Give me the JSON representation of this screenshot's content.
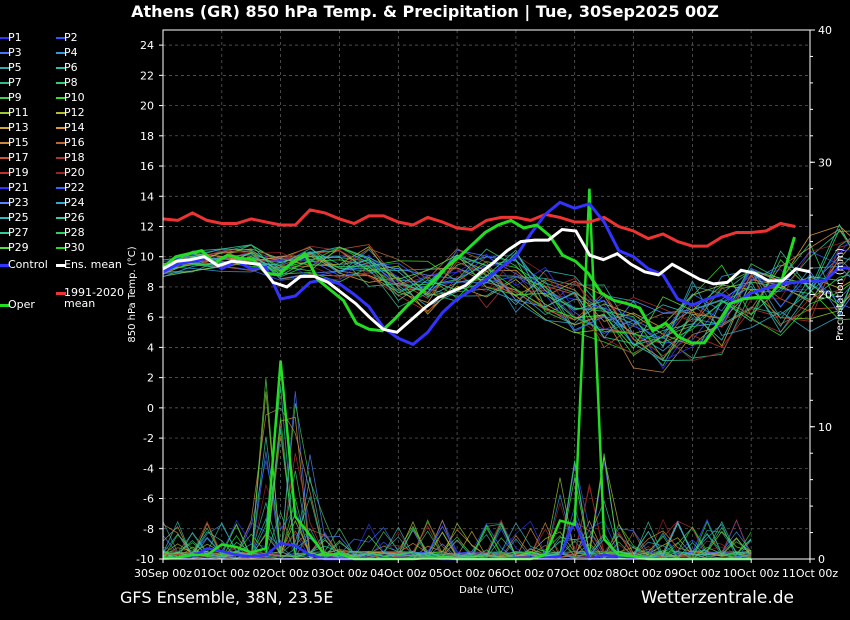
{
  "title": "Athens  (GR)  850 hPa Temp. & Precipitation | Tue, 30Sep2025 00Z",
  "footer_left": "GFS Ensemble, 38N, 23.5E",
  "footer_right": "Wetterzentrale.de",
  "legend": {
    "members": [
      {
        "name": "P1",
        "color": "#3333ff"
      },
      {
        "name": "P2",
        "color": "#3355ff"
      },
      {
        "name": "P3",
        "color": "#4477ff"
      },
      {
        "name": "P4",
        "color": "#3399dd"
      },
      {
        "name": "P5",
        "color": "#33aaaa"
      },
      {
        "name": "P6",
        "color": "#33bbaa"
      },
      {
        "name": "P7",
        "color": "#33bb88"
      },
      {
        "name": "P8",
        "color": "#33cc77"
      },
      {
        "name": "P9",
        "color": "#44cc55"
      },
      {
        "name": "P10",
        "color": "#33dd33"
      },
      {
        "name": "P11",
        "color": "#99cc33"
      },
      {
        "name": "P12",
        "color": "#bbbb33"
      },
      {
        "name": "P13",
        "color": "#ccaa33"
      },
      {
        "name": "P14",
        "color": "#dd9933"
      },
      {
        "name": "P15",
        "color": "#cc8844"
      },
      {
        "name": "P16",
        "color": "#bb6633"
      },
      {
        "name": "P17",
        "color": "#cc5533"
      },
      {
        "name": "P18",
        "color": "#aa3333"
      },
      {
        "name": "P19",
        "color": "#bb3333"
      },
      {
        "name": "P20",
        "color": "#992222"
      },
      {
        "name": "P21",
        "color": "#3333ff"
      },
      {
        "name": "P22",
        "color": "#3366ff"
      },
      {
        "name": "P23",
        "color": "#5588ff"
      },
      {
        "name": "P24",
        "color": "#33aacc"
      },
      {
        "name": "P25",
        "color": "#33bbbb"
      },
      {
        "name": "P26",
        "color": "#33ccaa"
      },
      {
        "name": "P27",
        "color": "#33cc99"
      },
      {
        "name": "P28",
        "color": "#33cc66"
      },
      {
        "name": "P29",
        "color": "#55dd44"
      },
      {
        "name": "P30",
        "color": "#22dd22"
      }
    ],
    "control": "Control",
    "ens_mean": "Ens. mean",
    "oper": "Oper",
    "clim_mean_line1": "1991-2020",
    "clim_mean_line2": "mean"
  },
  "colors": {
    "control": "#3333ff",
    "ens_mean": "#ffffff",
    "oper": "#22dd22",
    "clim_mean": "#ee3333",
    "grid": "#666666"
  },
  "chart_data": {
    "type": "line",
    "x": [
      "30Sep 00z",
      "01Oct 00z",
      "02Oct 00z",
      "03Oct 00z",
      "04Oct 00z",
      "05Oct 00z",
      "06Oct 00z",
      "07Oct 00z",
      "08Oct 00z",
      "09Oct 00z",
      "10Oct 00z",
      "11Oct 00z"
    ],
    "xlabel": "Date (UTC)",
    "ylabel": "850 hPa Temp. (°C)",
    "y2label": "Precipitation (mm)",
    "ylim": [
      -10,
      25
    ],
    "yticks": [
      -10,
      -8,
      -6,
      -4,
      -2,
      0,
      2,
      4,
      6,
      8,
      10,
      12,
      14,
      16,
      18,
      20,
      22,
      24
    ],
    "y2lim": [
      0,
      40
    ],
    "y2ticks": [
      0,
      10,
      20,
      30,
      40
    ],
    "grid": true,
    "legend_position": "left",
    "x_step_hours": 12,
    "temperature": {
      "clim_mean": [
        12.5,
        12.4,
        12.9,
        12.4,
        12.2,
        12.2,
        12.5,
        12.3,
        12.1,
        12.1,
        13.1,
        12.9,
        12.5,
        12.2,
        12.7,
        12.7,
        12.3,
        12.1,
        12.6,
        12.3,
        11.9,
        11.8,
        12.4,
        12.6,
        12.6,
        12.4,
        12.8,
        12.6,
        12.3,
        12.3,
        12.6,
        12.0,
        11.7,
        11.2,
        11.5,
        11.0,
        10.7,
        10.7,
        11.3,
        11.6,
        11.6,
        11.7,
        12.2,
        12.0
      ],
      "ens_mean": [
        9.2,
        9.7,
        9.8,
        10.0,
        9.4,
        9.7,
        9.6,
        9.5,
        8.3,
        8.0,
        8.7,
        8.7,
        8.3,
        7.6,
        6.9,
        6.0,
        5.2,
        5.0,
        5.8,
        6.6,
        7.3,
        7.7,
        8.1,
        8.9,
        9.6,
        10.4,
        11.0,
        11.1,
        11.1,
        11.8,
        11.7,
        10.1,
        9.8,
        10.2,
        9.5,
        9.0,
        8.8,
        9.5,
        9.0,
        8.5,
        8.2,
        8.3,
        9.1,
        8.9,
        8.4,
        8.4,
        9.2,
        9.0
      ],
      "control": [
        9.0,
        9.5,
        9.7,
        9.9,
        9.2,
        9.7,
        9.2,
        9.3,
        7.2,
        7.4,
        8.3,
        8.5,
        8.2,
        7.5,
        6.7,
        5.3,
        4.6,
        4.2,
        5.0,
        6.3,
        7.2,
        7.8,
        8.5,
        9.3,
        10.0,
        11.5,
        12.8,
        13.6,
        13.2,
        13.5,
        12.3,
        10.4,
        10.0,
        9.2,
        8.8,
        7.2,
        6.8,
        7.2,
        7.5,
        7.0,
        7.6,
        7.9,
        8.2,
        8.3,
        8.4,
        8.4,
        9.3,
        9.2
      ],
      "oper": [
        9.3,
        10.0,
        10.2,
        10.4,
        9.6,
        10.1,
        9.9,
        9.8,
        8.9,
        8.8,
        9.6,
        10.2,
        8.5,
        7.8,
        7.1,
        5.6,
        5.2,
        5.1,
        5.9,
        6.8,
        7.6,
        8.4,
        9.3,
        10.0,
        10.8,
        11.6,
        12.1,
        12.4,
        11.9,
        12.1,
        11.4,
        10.1,
        9.7,
        8.9,
        7.6,
        7.1,
        6.9,
        6.6,
        5.1,
        5.6,
        4.7,
        4.3,
        4.3,
        5.5,
        6.9,
        7.2,
        7.3,
        7.3,
        8.4,
        11.3
      ]
    },
    "precipitation": {
      "oper": [
        0.1,
        0.1,
        0.3,
        0.3,
        1.1,
        0.9,
        0.5,
        0.8,
        15.0,
        3.2,
        1.8,
        0.3,
        0.4,
        0.0,
        0.0,
        0.0,
        0.0,
        0.0,
        0.1,
        0.1,
        0.0,
        0.0,
        0.0,
        0.0,
        0.0,
        0.0,
        0.3,
        2.9,
        2.6,
        28.0,
        1.5,
        0.3,
        0.2,
        0.0,
        0.0,
        0.0,
        0.0,
        0.0,
        0.0,
        0.0,
        0.0
      ],
      "control": [
        0.0,
        0.1,
        0.2,
        0.8,
        0.6,
        0.3,
        0.2,
        0.3,
        1.2,
        1.0,
        0.3,
        0.0,
        0.0,
        0.0,
        0.0,
        0.0,
        0.1,
        0.0,
        0.1,
        0.0,
        0.0,
        0.0,
        0.0,
        0.0,
        0.1,
        0.1,
        0.1,
        0.2,
        2.9,
        0.0,
        0.3,
        0.2,
        0.1,
        0.0,
        0.0,
        0.0,
        0.0,
        0.0,
        0.0,
        0.0,
        0.0
      ],
      "control_late": [
        0.0,
        0.0,
        0.1,
        4.6,
        4.2,
        0.0,
        0.4,
        0.1,
        0.0
      ]
    }
  }
}
